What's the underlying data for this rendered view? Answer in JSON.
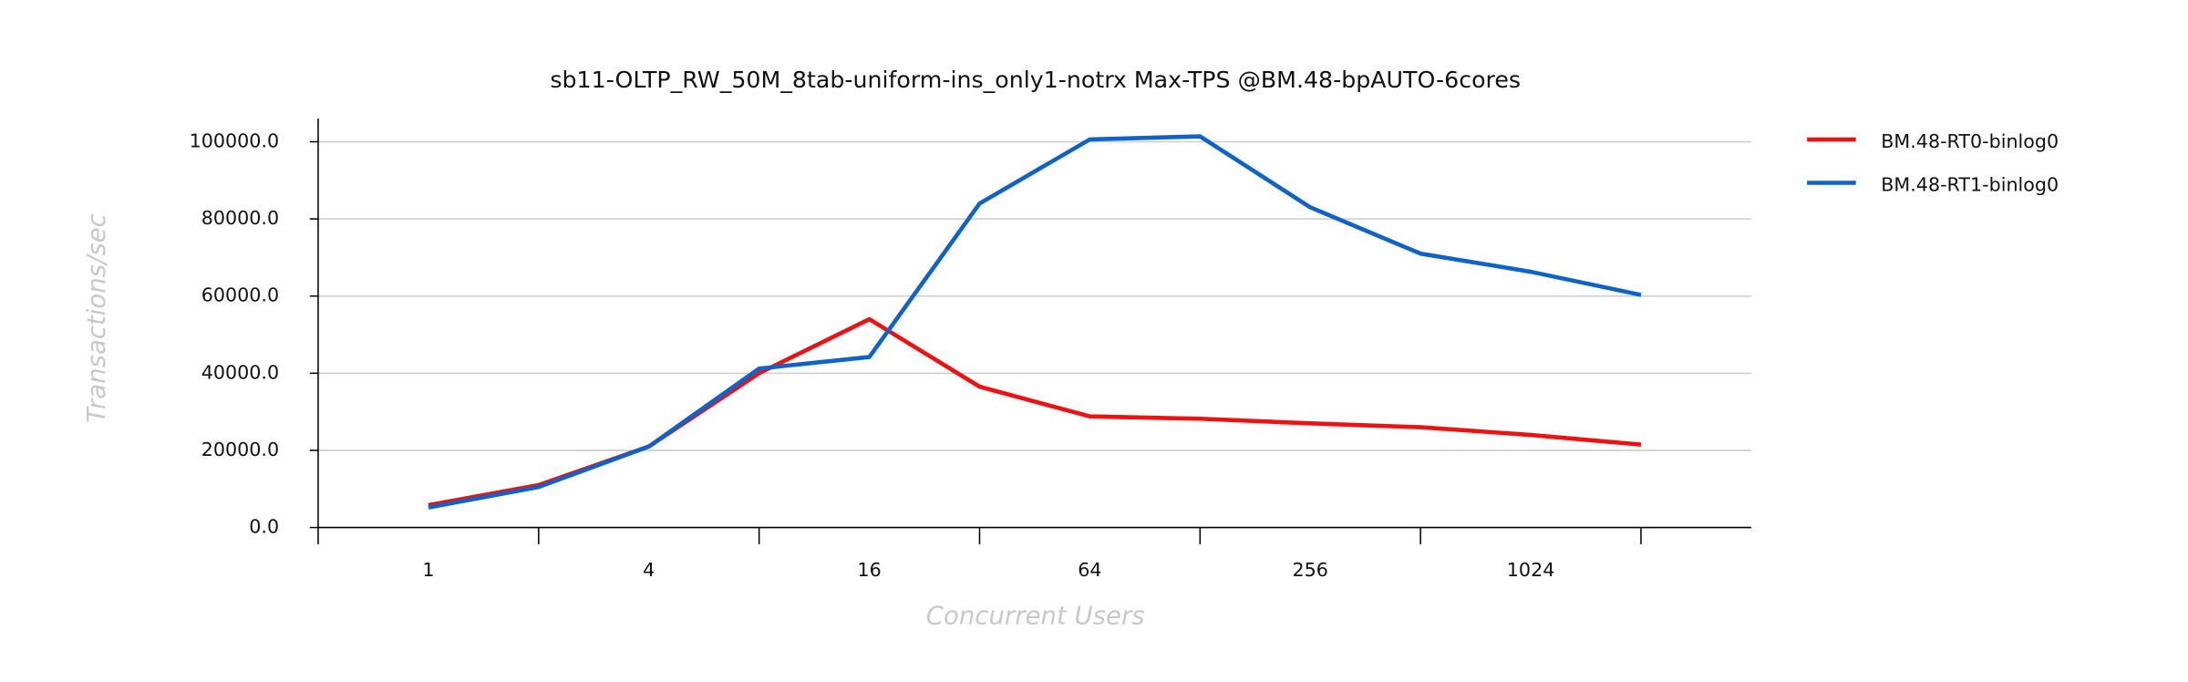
{
  "chart_data": {
    "type": "line",
    "title": "sb11-OLTP_RW_50M_8tab-uniform-ins_only1-notrx Max-TPS @BM.48-bpAUTO-6cores",
    "xlabel": "Concurrent Users",
    "ylabel": "Transactions/sec",
    "x": [
      1,
      2,
      4,
      8,
      16,
      32,
      64,
      128,
      256,
      512,
      1024,
      2048
    ],
    "xscale": "log2",
    "xlim": [
      0.5,
      4096
    ],
    "xticks": [
      1,
      4,
      16,
      64,
      256,
      1024
    ],
    "xminor_ticks": [
      0.5,
      2,
      8,
      32,
      128,
      512,
      2048
    ],
    "ylim": [
      0,
      106000
    ],
    "yticks": [
      {
        "value": 0,
        "label": "0.0"
      },
      {
        "value": 20000,
        "label": "20000.0"
      },
      {
        "value": 40000,
        "label": "40000.0"
      },
      {
        "value": 60000,
        "label": "60000.0"
      },
      {
        "value": 80000,
        "label": "80000.0"
      },
      {
        "value": 100000,
        "label": "100000.0"
      }
    ],
    "grid": true,
    "legend": "outside-right",
    "series": [
      {
        "name": "BM.48-RT0-binlog0",
        "color": "#ee1111",
        "values": [
          5800,
          11000,
          21000,
          40000,
          54000,
          36500,
          28800,
          28200,
          27000,
          26000,
          24000,
          21500
        ]
      },
      {
        "name": "BM.48-RT1-binlog0",
        "color": "#0f62c8",
        "values": [
          5200,
          10500,
          21000,
          41200,
          44200,
          84000,
          100600,
          101400,
          83000,
          71000,
          66300,
          60300
        ]
      }
    ]
  }
}
